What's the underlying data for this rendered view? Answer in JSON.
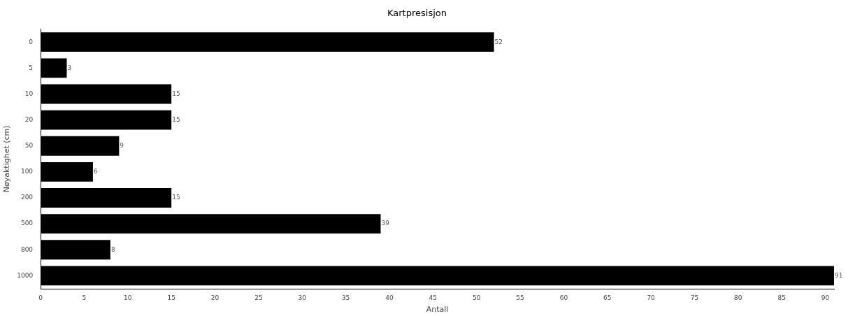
{
  "chart_data": {
    "type": "bar",
    "orientation": "horizontal",
    "title": "Kartpresisjon",
    "xlabel": "Antall",
    "ylabel": "Nøyaktighet (cm)",
    "categories": [
      "0",
      "5",
      "10",
      "20",
      "50",
      "100",
      "200",
      "500",
      "800",
      "1000"
    ],
    "values": [
      52,
      3,
      15,
      15,
      9,
      6,
      15,
      39,
      8,
      91
    ],
    "color": "#000000",
    "xlim": [
      0,
      91
    ],
    "xticks": [
      0,
      5,
      10,
      15,
      20,
      25,
      30,
      35,
      40,
      45,
      50,
      55,
      60,
      65,
      70,
      75,
      80,
      85,
      90
    ],
    "grid": false,
    "legend": false,
    "data_labels": true
  }
}
